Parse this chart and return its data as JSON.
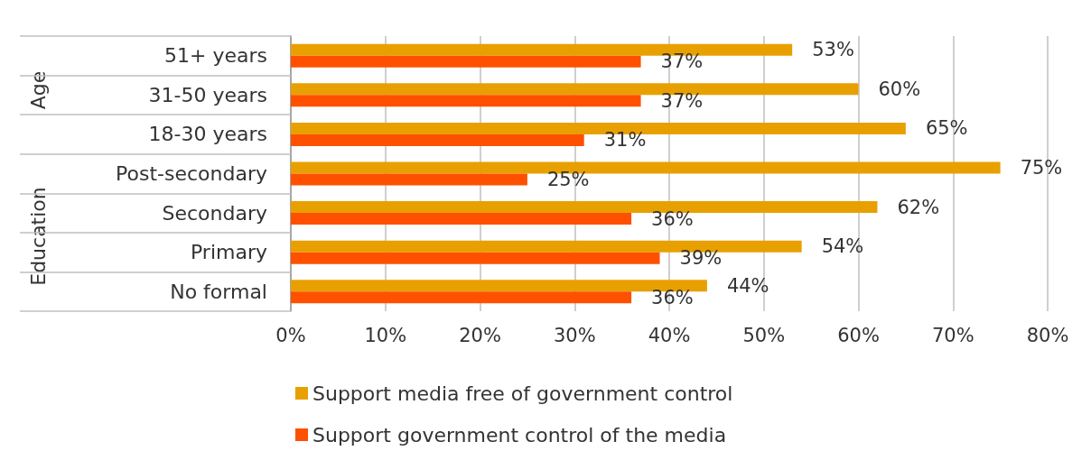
{
  "chart_data": {
    "type": "bar",
    "orientation": "horizontal",
    "categories": [
      "51+ years",
      "31-50 years",
      "18-30 years",
      "Post-secondary",
      "Secondary",
      "Primary",
      "No formal"
    ],
    "series": [
      {
        "name": "Support media free of government control",
        "color": "#e8a000",
        "values": [
          53,
          60,
          65,
          75,
          62,
          54,
          44
        ],
        "value_labels": [
          "53%",
          "60%",
          "65%",
          "75%",
          "62%",
          "54%",
          "44%"
        ]
      },
      {
        "name": "Support government control of the media",
        "color": "#ff5000",
        "values": [
          37,
          37,
          31,
          25,
          36,
          39,
          36
        ],
        "value_labels": [
          "37%",
          "37%",
          "31%",
          "25%",
          "36%",
          "39%",
          "36%"
        ]
      }
    ],
    "xlim": [
      0,
      80
    ],
    "xticks": [
      {
        "value": 0,
        "label": "0%"
      },
      {
        "value": 10,
        "label": "10%"
      },
      {
        "value": 20,
        "label": "20%"
      },
      {
        "value": 30,
        "label": "30%"
      },
      {
        "value": 40,
        "label": "40%"
      },
      {
        "value": 50,
        "label": "50%"
      },
      {
        "value": 60,
        "label": "60%"
      },
      {
        "value": 70,
        "label": "70%"
      },
      {
        "value": 80,
        "label": "80%"
      }
    ],
    "grid": "x",
    "legend": "bottom",
    "annotations": [
      "Age",
      "Education"
    ]
  }
}
